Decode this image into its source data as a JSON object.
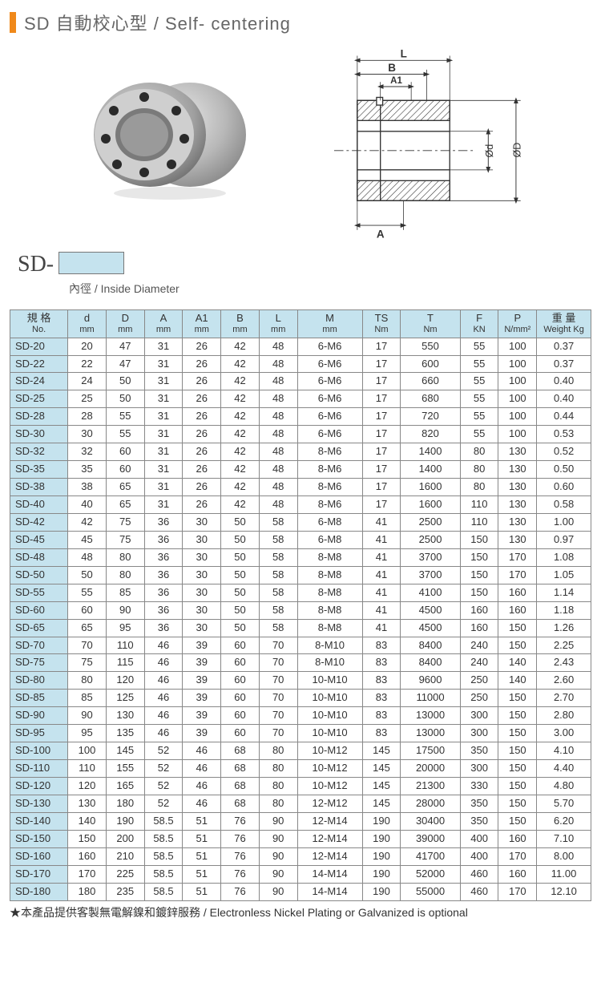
{
  "title": "SD 自動校心型 / Self- centering",
  "sd_prefix": "SD-",
  "sd_caption": "內徑 / Inside Diameter",
  "footnote": "★本產品提供客製無電解鎳和鍍鋅服務 / Electronless Nickel Plating or Galvanized is optional",
  "diagram_labels": {
    "L": "L",
    "B": "B",
    "A1": "A1",
    "A": "A",
    "d": "Ød",
    "D": "ØD"
  },
  "table": {
    "headers": [
      {
        "l1": "規 格",
        "l2": "No."
      },
      {
        "l1": "d",
        "l2": "mm"
      },
      {
        "l1": "D",
        "l2": "mm"
      },
      {
        "l1": "A",
        "l2": "mm"
      },
      {
        "l1": "A1",
        "l2": "mm"
      },
      {
        "l1": "B",
        "l2": "mm"
      },
      {
        "l1": "L",
        "l2": "mm"
      },
      {
        "l1": "M",
        "l2": "mm"
      },
      {
        "l1": "TS",
        "l2": "Nm"
      },
      {
        "l1": "T",
        "l2": "Nm"
      },
      {
        "l1": "F",
        "l2": "KN"
      },
      {
        "l1": "P",
        "l2": "N/mm²"
      },
      {
        "l1": "重 量",
        "l2": "Weight Kg"
      }
    ],
    "rows": [
      [
        "SD-20",
        "20",
        "47",
        "31",
        "26",
        "42",
        "48",
        "6-M6",
        "17",
        "550",
        "55",
        "100",
        "0.37"
      ],
      [
        "SD-22",
        "22",
        "47",
        "31",
        "26",
        "42",
        "48",
        "6-M6",
        "17",
        "600",
        "55",
        "100",
        "0.37"
      ],
      [
        "SD-24",
        "24",
        "50",
        "31",
        "26",
        "42",
        "48",
        "6-M6",
        "17",
        "660",
        "55",
        "100",
        "0.40"
      ],
      [
        "SD-25",
        "25",
        "50",
        "31",
        "26",
        "42",
        "48",
        "6-M6",
        "17",
        "680",
        "55",
        "100",
        "0.40"
      ],
      [
        "SD-28",
        "28",
        "55",
        "31",
        "26",
        "42",
        "48",
        "6-M6",
        "17",
        "720",
        "55",
        "100",
        "0.44"
      ],
      [
        "SD-30",
        "30",
        "55",
        "31",
        "26",
        "42",
        "48",
        "6-M6",
        "17",
        "820",
        "55",
        "100",
        "0.53"
      ],
      [
        "SD-32",
        "32",
        "60",
        "31",
        "26",
        "42",
        "48",
        "8-M6",
        "17",
        "1400",
        "80",
        "130",
        "0.52"
      ],
      [
        "SD-35",
        "35",
        "60",
        "31",
        "26",
        "42",
        "48",
        "8-M6",
        "17",
        "1400",
        "80",
        "130",
        "0.50"
      ],
      [
        "SD-38",
        "38",
        "65",
        "31",
        "26",
        "42",
        "48",
        "8-M6",
        "17",
        "1600",
        "80",
        "130",
        "0.60"
      ],
      [
        "SD-40",
        "40",
        "65",
        "31",
        "26",
        "42",
        "48",
        "8-M6",
        "17",
        "1600",
        "110",
        "130",
        "0.58"
      ],
      [
        "SD-42",
        "42",
        "75",
        "36",
        "30",
        "50",
        "58",
        "6-M8",
        "41",
        "2500",
        "110",
        "130",
        "1.00"
      ],
      [
        "SD-45",
        "45",
        "75",
        "36",
        "30",
        "50",
        "58",
        "6-M8",
        "41",
        "2500",
        "150",
        "130",
        "0.97"
      ],
      [
        "SD-48",
        "48",
        "80",
        "36",
        "30",
        "50",
        "58",
        "8-M8",
        "41",
        "3700",
        "150",
        "170",
        "1.08"
      ],
      [
        "SD-50",
        "50",
        "80",
        "36",
        "30",
        "50",
        "58",
        "8-M8",
        "41",
        "3700",
        "150",
        "170",
        "1.05"
      ],
      [
        "SD-55",
        "55",
        "85",
        "36",
        "30",
        "50",
        "58",
        "8-M8",
        "41",
        "4100",
        "150",
        "160",
        "1.14"
      ],
      [
        "SD-60",
        "60",
        "90",
        "36",
        "30",
        "50",
        "58",
        "8-M8",
        "41",
        "4500",
        "160",
        "160",
        "1.18"
      ],
      [
        "SD-65",
        "65",
        "95",
        "36",
        "30",
        "50",
        "58",
        "8-M8",
        "41",
        "4500",
        "160",
        "150",
        "1.26"
      ],
      [
        "SD-70",
        "70",
        "110",
        "46",
        "39",
        "60",
        "70",
        "8-M10",
        "83",
        "8400",
        "240",
        "150",
        "2.25"
      ],
      [
        "SD-75",
        "75",
        "115",
        "46",
        "39",
        "60",
        "70",
        "8-M10",
        "83",
        "8400",
        "240",
        "140",
        "2.43"
      ],
      [
        "SD-80",
        "80",
        "120",
        "46",
        "39",
        "60",
        "70",
        "10-M10",
        "83",
        "9600",
        "250",
        "140",
        "2.60"
      ],
      [
        "SD-85",
        "85",
        "125",
        "46",
        "39",
        "60",
        "70",
        "10-M10",
        "83",
        "11000",
        "250",
        "150",
        "2.70"
      ],
      [
        "SD-90",
        "90",
        "130",
        "46",
        "39",
        "60",
        "70",
        "10-M10",
        "83",
        "13000",
        "300",
        "150",
        "2.80"
      ],
      [
        "SD-95",
        "95",
        "135",
        "46",
        "39",
        "60",
        "70",
        "10-M10",
        "83",
        "13000",
        "300",
        "150",
        "3.00"
      ],
      [
        "SD-100",
        "100",
        "145",
        "52",
        "46",
        "68",
        "80",
        "10-M12",
        "145",
        "17500",
        "350",
        "150",
        "4.10"
      ],
      [
        "SD-110",
        "110",
        "155",
        "52",
        "46",
        "68",
        "80",
        "10-M12",
        "145",
        "20000",
        "300",
        "150",
        "4.40"
      ],
      [
        "SD-120",
        "120",
        "165",
        "52",
        "46",
        "68",
        "80",
        "10-M12",
        "145",
        "21300",
        "330",
        "150",
        "4.80"
      ],
      [
        "SD-130",
        "130",
        "180",
        "52",
        "46",
        "68",
        "80",
        "12-M12",
        "145",
        "28000",
        "350",
        "150",
        "5.70"
      ],
      [
        "SD-140",
        "140",
        "190",
        "58.5",
        "51",
        "76",
        "90",
        "12-M14",
        "190",
        "30400",
        "350",
        "150",
        "6.20"
      ],
      [
        "SD-150",
        "150",
        "200",
        "58.5",
        "51",
        "76",
        "90",
        "12-M14",
        "190",
        "39000",
        "400",
        "160",
        "7.10"
      ],
      [
        "SD-160",
        "160",
        "210",
        "58.5",
        "51",
        "76",
        "90",
        "12-M14",
        "190",
        "41700",
        "400",
        "170",
        "8.00"
      ],
      [
        "SD-170",
        "170",
        "225",
        "58.5",
        "51",
        "76",
        "90",
        "14-M14",
        "190",
        "52000",
        "460",
        "160",
        "11.00"
      ],
      [
        "SD-180",
        "180",
        "235",
        "58.5",
        "51",
        "76",
        "90",
        "14-M14",
        "190",
        "55000",
        "460",
        "170",
        "12.10"
      ]
    ],
    "col_classes": [
      "col-no",
      "col-n",
      "col-n",
      "col-n",
      "col-n",
      "col-n",
      "col-n",
      "col-m",
      "col-n",
      "col-t",
      "col-n",
      "col-n",
      "col-w"
    ]
  },
  "colors": {
    "accent": "#f0891a",
    "header_bg": "#c5e3ee",
    "border": "#888888",
    "text": "#333333"
  }
}
